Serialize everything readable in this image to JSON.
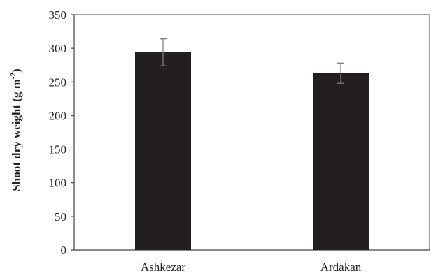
{
  "chart_data": {
    "type": "bar",
    "categories": [
      "Ashkezar",
      "Ardakan"
    ],
    "values": [
      294,
      263
    ],
    "errors": [
      20,
      15
    ],
    "ylabel": "Shoot dry weight (g m",
    "ylabel_sup": "-2",
    "ylabel_close": ")",
    "ylim": [
      0,
      350
    ],
    "yticks": [
      0,
      50,
      100,
      150,
      200,
      250,
      300,
      350
    ],
    "grid": false,
    "bar_color": "#231f20",
    "error_color": "#7f7f7f"
  }
}
